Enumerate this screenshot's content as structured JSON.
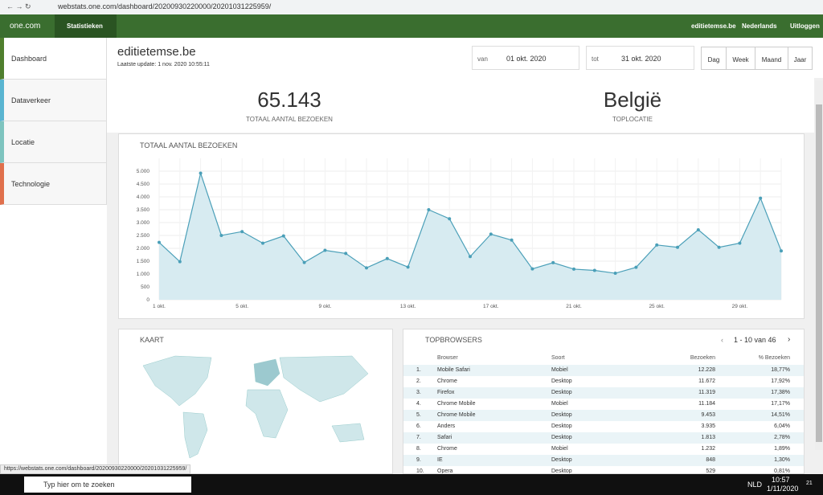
{
  "browser": {
    "url": "webstats.one.com/dashboard/20200930220000/20201031225959/"
  },
  "nav": {
    "logo": "one.com",
    "tab": "Statistieken",
    "site": "editietemse.be",
    "language": "Nederlands",
    "logout": "Uitloggen"
  },
  "sidebar": [
    "Dashboard",
    "Dataverkeer",
    "Locatie",
    "Technologie"
  ],
  "header": {
    "title": "editietemse.be",
    "updated": "Laatste update: 1 nov. 2020 10:55:11"
  },
  "range": {
    "from_label": "van",
    "from": "01 okt. 2020",
    "to_label": "tot",
    "to": "31 okt. 2020",
    "buttons": [
      "Dag",
      "Week",
      "Maand",
      "Jaar"
    ]
  },
  "stats": [
    {
      "value": "65.143",
      "label": "TOTAAL AANTAL BEZOEKEN"
    },
    {
      "value": "België",
      "label": "TOPLOCATIE"
    }
  ],
  "chart_data": {
    "type": "line",
    "title": "TOTAAL AANTAL BEZOEKEN",
    "categories": [
      "1 okt.",
      null,
      null,
      null,
      "5 okt.",
      null,
      null,
      null,
      "9 okt.",
      null,
      null,
      null,
      "13 okt.",
      null,
      null,
      null,
      "17 okt.",
      null,
      null,
      null,
      "21 okt.",
      null,
      null,
      null,
      "25 okt.",
      null,
      null,
      null,
      "29 okt.",
      null,
      null
    ],
    "values": [
      2230,
      1480,
      4920,
      2500,
      2650,
      2200,
      2480,
      1450,
      1920,
      1800,
      1240,
      1600,
      1270,
      3500,
      3150,
      1680,
      2550,
      2320,
      1200,
      1440,
      1190,
      1140,
      1030,
      1260,
      2130,
      2040,
      2720,
      2040,
      2200,
      3950,
      1900
    ],
    "color": "#4a9fb8",
    "area_color": "#d7ebf1",
    "ylim": [
      0,
      5500
    ],
    "yticks": [
      0,
      500,
      {
        "value": 1000,
        "label": "1.000"
      },
      {
        "value": 1500,
        "label": "1.500"
      },
      {
        "value": 2000,
        "label": "2.000"
      },
      {
        "value": 2500,
        "label": "2.500"
      },
      {
        "value": 3000,
        "label": "3.000"
      },
      {
        "value": 3500,
        "label": "3.500"
      },
      {
        "value": 4000,
        "label": "4.000"
      },
      {
        "value": 4500,
        "label": "4.500"
      },
      {
        "value": 5000,
        "label": "5.000"
      }
    ],
    "grid": true
  },
  "map": {
    "title": "KAART"
  },
  "table": {
    "title": "TOPBROWSERS",
    "pagination": "1 - 10 van 46",
    "header": [
      "Browser",
      "Soort",
      "Bezoeken",
      "% Bezoeken"
    ],
    "rows": [
      [
        "1.",
        "Mobile Safari",
        "Mobiel",
        "12.228",
        "18,77%"
      ],
      [
        "2.",
        "Chrome",
        "Desktop",
        "11.672",
        "17,92%"
      ],
      [
        "3.",
        "Firefox",
        "Desktop",
        "11.319",
        "17,38%"
      ],
      [
        "4.",
        "Chrome Mobile",
        "Mobiel",
        "11.184",
        "17,17%"
      ],
      [
        "5.",
        "Chrome Mobile",
        "Desktop",
        "9.453",
        "14,51%"
      ],
      [
        "6.",
        "Anders",
        "Desktop",
        "3.935",
        "6,04%"
      ],
      [
        "7.",
        "Safari",
        "Desktop",
        "1.813",
        "2,78%"
      ],
      [
        "8.",
        "Chrome",
        "Mobiel",
        "1.232",
        "1,89%"
      ],
      [
        "9.",
        "IE",
        "Desktop",
        "848",
        "1,30%"
      ],
      [
        "10.",
        "Opera",
        "Desktop",
        "529",
        "0,81%"
      ]
    ]
  },
  "status_url": "https://webstats.one.com/dashboard/20200930220000/20201031225959/",
  "taskbar": {
    "search": "Typ hier om te zoeken",
    "lang": "NLD",
    "time": "10:57",
    "date": "1/11/2020",
    "badge": "21"
  }
}
